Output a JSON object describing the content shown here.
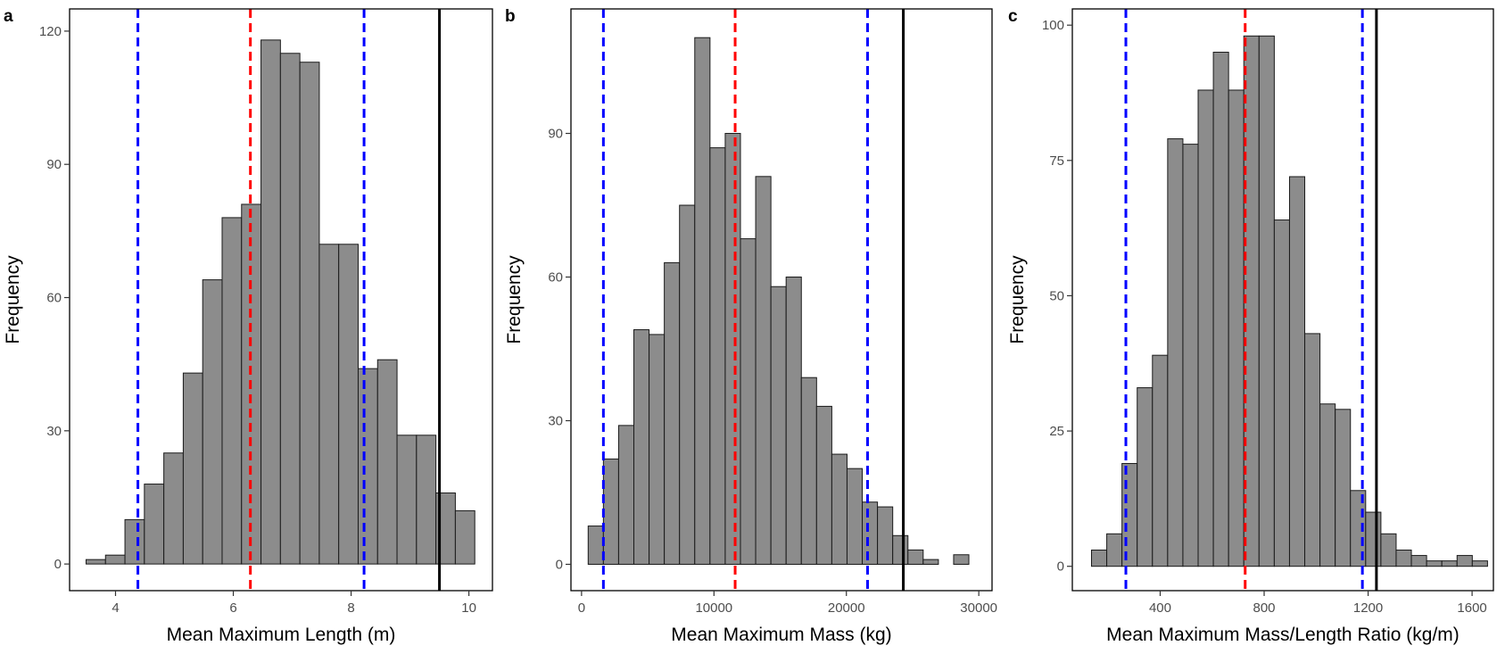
{
  "chart_data": [
    {
      "type": "bar",
      "panel_label": "a",
      "xlabel": "Mean Maximum Length (m)",
      "ylabel": "Frequency",
      "xlim": [
        3.22,
        10.4
      ],
      "ylim": [
        -6,
        125
      ],
      "xticks": [
        4,
        6,
        8,
        10
      ],
      "yticks": [
        0,
        30,
        60,
        90,
        120
      ],
      "grid": false,
      "bin_width": 0.33,
      "bins": [
        {
          "start": 3.5,
          "count": 1
        },
        {
          "start": 3.83,
          "count": 2
        },
        {
          "start": 4.16,
          "count": 10
        },
        {
          "start": 4.49,
          "count": 18
        },
        {
          "start": 4.82,
          "count": 25
        },
        {
          "start": 5.15,
          "count": 43
        },
        {
          "start": 5.48,
          "count": 64
        },
        {
          "start": 5.81,
          "count": 78
        },
        {
          "start": 6.14,
          "count": 81
        },
        {
          "start": 6.47,
          "count": 118
        },
        {
          "start": 6.8,
          "count": 115
        },
        {
          "start": 7.13,
          "count": 113
        },
        {
          "start": 7.46,
          "count": 72
        },
        {
          "start": 7.79,
          "count": 72
        },
        {
          "start": 8.12,
          "count": 44
        },
        {
          "start": 8.45,
          "count": 46
        },
        {
          "start": 8.78,
          "count": 29
        },
        {
          "start": 9.11,
          "count": 29
        },
        {
          "start": 9.44,
          "count": 16
        },
        {
          "start": 9.77,
          "count": 12
        }
      ],
      "vlines": [
        {
          "x": 4.38,
          "color": "#0000ff",
          "style": "dashed"
        },
        {
          "x": 6.29,
          "color": "#ff0000",
          "style": "dashed"
        },
        {
          "x": 8.22,
          "color": "#0000ff",
          "style": "dashed"
        },
        {
          "x": 9.5,
          "color": "#000000",
          "style": "solid"
        }
      ]
    },
    {
      "type": "bar",
      "panel_label": "b",
      "xlabel": "Mean Maximum Mass (kg)",
      "ylabel": "Frequency",
      "xlim": [
        -800,
        31000
      ],
      "ylim": [
        -5.5,
        116
      ],
      "xticks": [
        0,
        10000,
        20000,
        30000
      ],
      "yticks": [
        0,
        30,
        60,
        90
      ],
      "grid": false,
      "bin_width": 1150,
      "bins": [
        {
          "start": 500,
          "count": 8
        },
        {
          "start": 1650,
          "count": 22
        },
        {
          "start": 2800,
          "count": 29
        },
        {
          "start": 3950,
          "count": 49
        },
        {
          "start": 5100,
          "count": 48
        },
        {
          "start": 6250,
          "count": 63
        },
        {
          "start": 7400,
          "count": 75
        },
        {
          "start": 8550,
          "count": 110
        },
        {
          "start": 9700,
          "count": 87
        },
        {
          "start": 10850,
          "count": 90
        },
        {
          "start": 12000,
          "count": 68
        },
        {
          "start": 13150,
          "count": 81
        },
        {
          "start": 14300,
          "count": 58
        },
        {
          "start": 15450,
          "count": 60
        },
        {
          "start": 16600,
          "count": 39
        },
        {
          "start": 17750,
          "count": 33
        },
        {
          "start": 18900,
          "count": 23
        },
        {
          "start": 20050,
          "count": 20
        },
        {
          "start": 21200,
          "count": 13
        },
        {
          "start": 22350,
          "count": 12
        },
        {
          "start": 23500,
          "count": 6
        },
        {
          "start": 24650,
          "count": 3
        },
        {
          "start": 25800,
          "count": 1
        },
        {
          "start": 28100,
          "count": 2
        }
      ],
      "vlines": [
        {
          "x": 1650,
          "color": "#0000ff",
          "style": "dashed"
        },
        {
          "x": 11600,
          "color": "#ff0000",
          "style": "dashed"
        },
        {
          "x": 21600,
          "color": "#0000ff",
          "style": "dashed"
        },
        {
          "x": 24300,
          "color": "#000000",
          "style": "solid"
        }
      ]
    },
    {
      "type": "bar",
      "panel_label": "c",
      "xlabel": "Mean Maximum Mass/Length Ratio (kg/m)",
      "ylabel": "Frequency",
      "xlim": [
        62,
        1682
      ],
      "ylim": [
        -4.5,
        103
      ],
      "xticks": [
        400,
        800,
        1200,
        1600
      ],
      "yticks": [
        0,
        25,
        50,
        75,
        100
      ],
      "grid": false,
      "bin_width": 58.6,
      "bins": [
        {
          "start": 135.8,
          "count": 3
        },
        {
          "start": 194.4,
          "count": 6
        },
        {
          "start": 253.0,
          "count": 19
        },
        {
          "start": 311.6,
          "count": 33
        },
        {
          "start": 370.2,
          "count": 39
        },
        {
          "start": 428.8,
          "count": 79
        },
        {
          "start": 487.4,
          "count": 78
        },
        {
          "start": 546.0,
          "count": 88
        },
        {
          "start": 604.6,
          "count": 95
        },
        {
          "start": 663.2,
          "count": 88
        },
        {
          "start": 721.8,
          "count": 98
        },
        {
          "start": 780.4,
          "count": 98
        },
        {
          "start": 839.0,
          "count": 64
        },
        {
          "start": 897.6,
          "count": 72
        },
        {
          "start": 956.2,
          "count": 43
        },
        {
          "start": 1014.8,
          "count": 30
        },
        {
          "start": 1073.4,
          "count": 29
        },
        {
          "start": 1132.0,
          "count": 14
        },
        {
          "start": 1190.6,
          "count": 10
        },
        {
          "start": 1249.2,
          "count": 6
        },
        {
          "start": 1307.8,
          "count": 3
        },
        {
          "start": 1366.4,
          "count": 2
        },
        {
          "start": 1425.0,
          "count": 1
        },
        {
          "start": 1483.6,
          "count": 1
        },
        {
          "start": 1542.2,
          "count": 2
        },
        {
          "start": 1600.8,
          "count": 1
        }
      ],
      "vlines": [
        {
          "x": 268,
          "color": "#0000ff",
          "style": "dashed"
        },
        {
          "x": 727,
          "color": "#ff0000",
          "style": "dashed"
        },
        {
          "x": 1178,
          "color": "#0000ff",
          "style": "dashed"
        },
        {
          "x": 1232,
          "color": "#000000",
          "style": "solid"
        }
      ]
    }
  ],
  "colors": {
    "bar_fill": "#8c8c8c",
    "bar_stroke": "#1a1a1a",
    "ci_line": "#0000ff",
    "mean_line": "#ff0000",
    "observed_line": "#000000",
    "axis_text": "#4d4d4d"
  }
}
